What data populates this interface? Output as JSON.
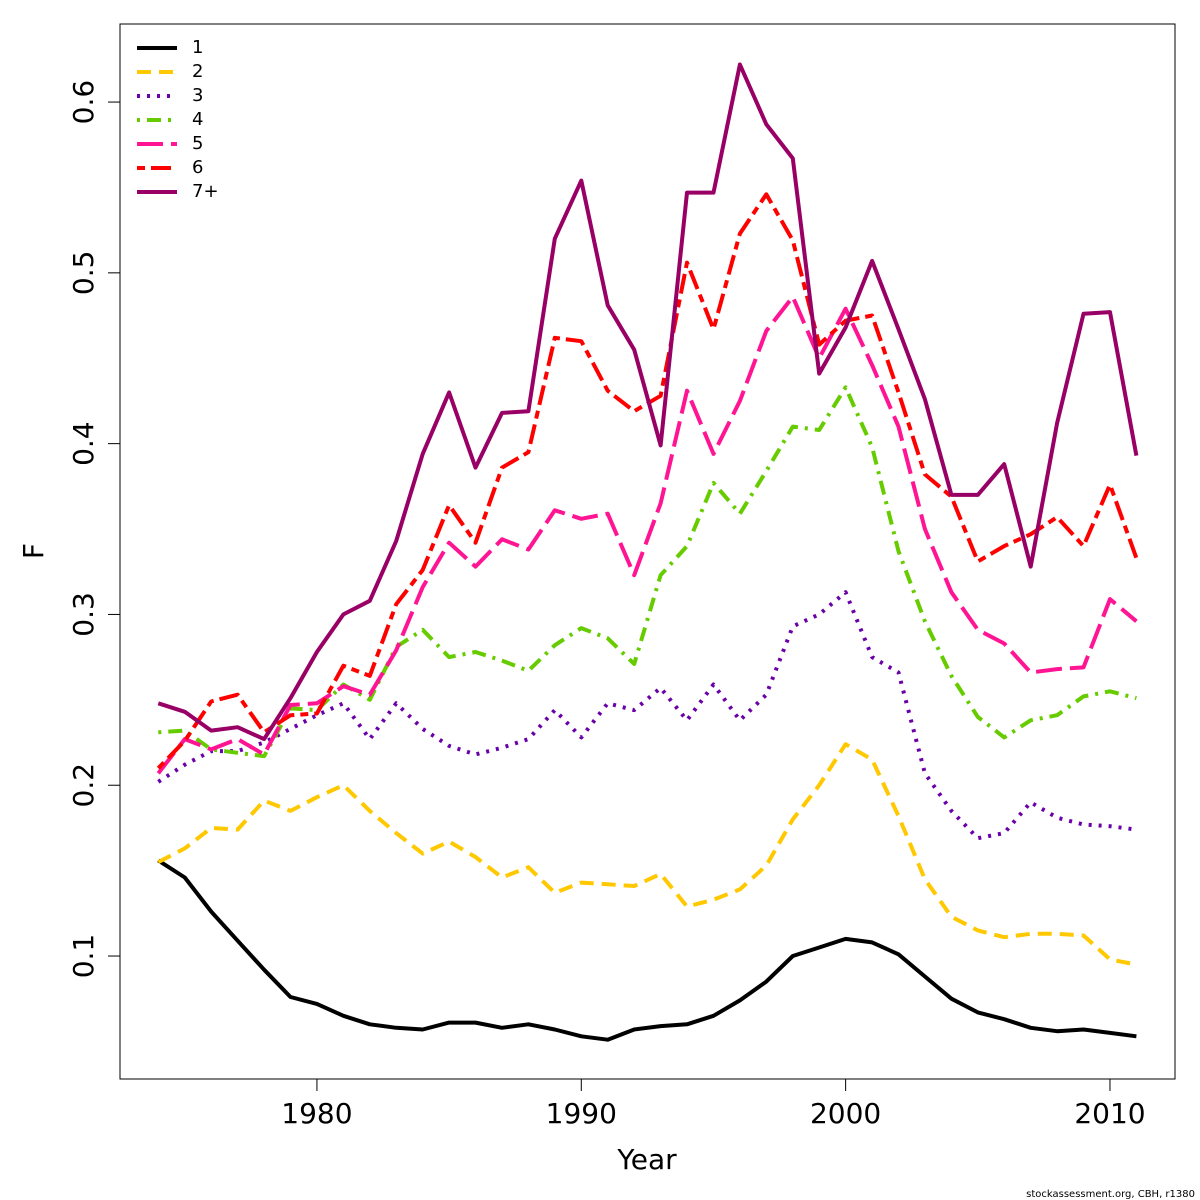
{
  "chart_data": {
    "type": "line",
    "xlabel": "Year",
    "ylabel": "F",
    "footer": "stockassessment.org, CBH, r1380",
    "legend": "top-left",
    "x": [
      1974,
      1975,
      1976,
      1977,
      1978,
      1979,
      1980,
      1981,
      1982,
      1983,
      1984,
      1985,
      1986,
      1987,
      1988,
      1989,
      1990,
      1991,
      1992,
      1993,
      1994,
      1995,
      1996,
      1997,
      1998,
      1999,
      2000,
      2001,
      2002,
      2003,
      2004,
      2005,
      2006,
      2007,
      2008,
      2009,
      2010,
      2011
    ],
    "xlim": [
      1972.55,
      2012.46
    ],
    "xticks": [
      1980,
      1990,
      2000,
      2010
    ],
    "ylim": [
      0.028,
      0.6457
    ],
    "yticks": [
      0.1,
      0.2,
      0.3,
      0.4,
      0.5,
      0.6
    ],
    "series": [
      {
        "name": "1",
        "color": "#000000",
        "dash": "solid",
        "values": [
          0.156,
          0.146,
          0.126,
          0.109,
          0.092,
          0.076,
          0.072,
          0.065,
          0.06,
          0.058,
          0.057,
          0.061,
          0.061,
          0.058,
          0.06,
          0.057,
          0.053,
          0.051,
          0.057,
          0.059,
          0.06,
          0.065,
          0.074,
          0.085,
          0.1,
          0.105,
          0.11,
          0.108,
          0.101,
          0.088,
          0.075,
          0.067,
          0.063,
          0.058,
          0.056,
          0.057,
          0.055,
          0.053
        ]
      },
      {
        "name": "2",
        "color": "#ffc800",
        "dash": "dashed",
        "values": [
          0.155,
          0.163,
          0.175,
          0.174,
          0.191,
          0.185,
          0.193,
          0.2,
          0.185,
          0.172,
          0.16,
          0.167,
          0.158,
          0.146,
          0.152,
          0.137,
          0.143,
          0.142,
          0.141,
          0.148,
          0.129,
          0.133,
          0.139,
          0.153,
          0.18,
          0.2,
          0.224,
          0.215,
          0.182,
          0.145,
          0.123,
          0.115,
          0.111,
          0.113,
          0.113,
          0.112,
          0.098,
          0.095
        ]
      },
      {
        "name": "3",
        "color": "#6a00a8",
        "dash": "dotted",
        "values": [
          0.202,
          0.212,
          0.22,
          0.22,
          0.225,
          0.233,
          0.241,
          0.248,
          0.227,
          0.248,
          0.233,
          0.223,
          0.218,
          0.222,
          0.227,
          0.244,
          0.228,
          0.248,
          0.244,
          0.257,
          0.238,
          0.259,
          0.238,
          0.253,
          0.293,
          0.3,
          0.313,
          0.275,
          0.266,
          0.207,
          0.185,
          0.169,
          0.172,
          0.19,
          0.181,
          0.177,
          0.176,
          0.174
        ]
      },
      {
        "name": "4",
        "color": "#66cc00",
        "dash": "dotdash",
        "values": [
          0.231,
          0.232,
          0.221,
          0.219,
          0.217,
          0.245,
          0.244,
          0.259,
          0.25,
          0.281,
          0.291,
          0.275,
          0.278,
          0.273,
          0.267,
          0.282,
          0.292,
          0.286,
          0.271,
          0.323,
          0.34,
          0.377,
          0.359,
          0.384,
          0.41,
          0.408,
          0.433,
          0.398,
          0.337,
          0.296,
          0.264,
          0.24,
          0.228,
          0.238,
          0.241,
          0.252,
          0.255,
          0.251
        ]
      },
      {
        "name": "5",
        "color": "#ff1493",
        "dash": "longdash",
        "values": [
          0.207,
          0.227,
          0.221,
          0.227,
          0.218,
          0.247,
          0.248,
          0.258,
          0.253,
          0.279,
          0.316,
          0.342,
          0.328,
          0.344,
          0.338,
          0.361,
          0.356,
          0.359,
          0.323,
          0.365,
          0.431,
          0.394,
          0.425,
          0.466,
          0.486,
          0.45,
          0.479,
          0.446,
          0.41,
          0.35,
          0.313,
          0.291,
          0.283,
          0.266,
          0.268,
          0.269,
          0.309,
          0.296
        ]
      },
      {
        "name": "6",
        "color": "#ff0000",
        "dash": "twodash",
        "values": [
          0.21,
          0.226,
          0.249,
          0.253,
          0.231,
          0.241,
          0.242,
          0.27,
          0.264,
          0.306,
          0.326,
          0.364,
          0.342,
          0.386,
          0.395,
          0.462,
          0.46,
          0.431,
          0.419,
          0.428,
          0.506,
          0.467,
          0.523,
          0.546,
          0.519,
          0.458,
          0.472,
          0.475,
          0.43,
          0.382,
          0.369,
          0.331,
          0.34,
          0.347,
          0.357,
          0.34,
          0.376,
          0.333
        ]
      },
      {
        "name": "7+",
        "color": "#990066",
        "dash": "solid",
        "values": [
          0.248,
          0.243,
          0.232,
          0.234,
          0.227,
          0.251,
          0.278,
          0.3,
          0.308,
          0.343,
          0.394,
          0.43,
          0.386,
          0.418,
          0.419,
          0.52,
          0.554,
          0.481,
          0.455,
          0.399,
          0.547,
          0.547,
          0.622,
          0.587,
          0.567,
          0.441,
          0.468,
          0.507,
          0.467,
          0.426,
          0.37,
          0.37,
          0.388,
          0.328,
          0.412,
          0.476,
          0.477,
          0.393
        ]
      }
    ]
  }
}
